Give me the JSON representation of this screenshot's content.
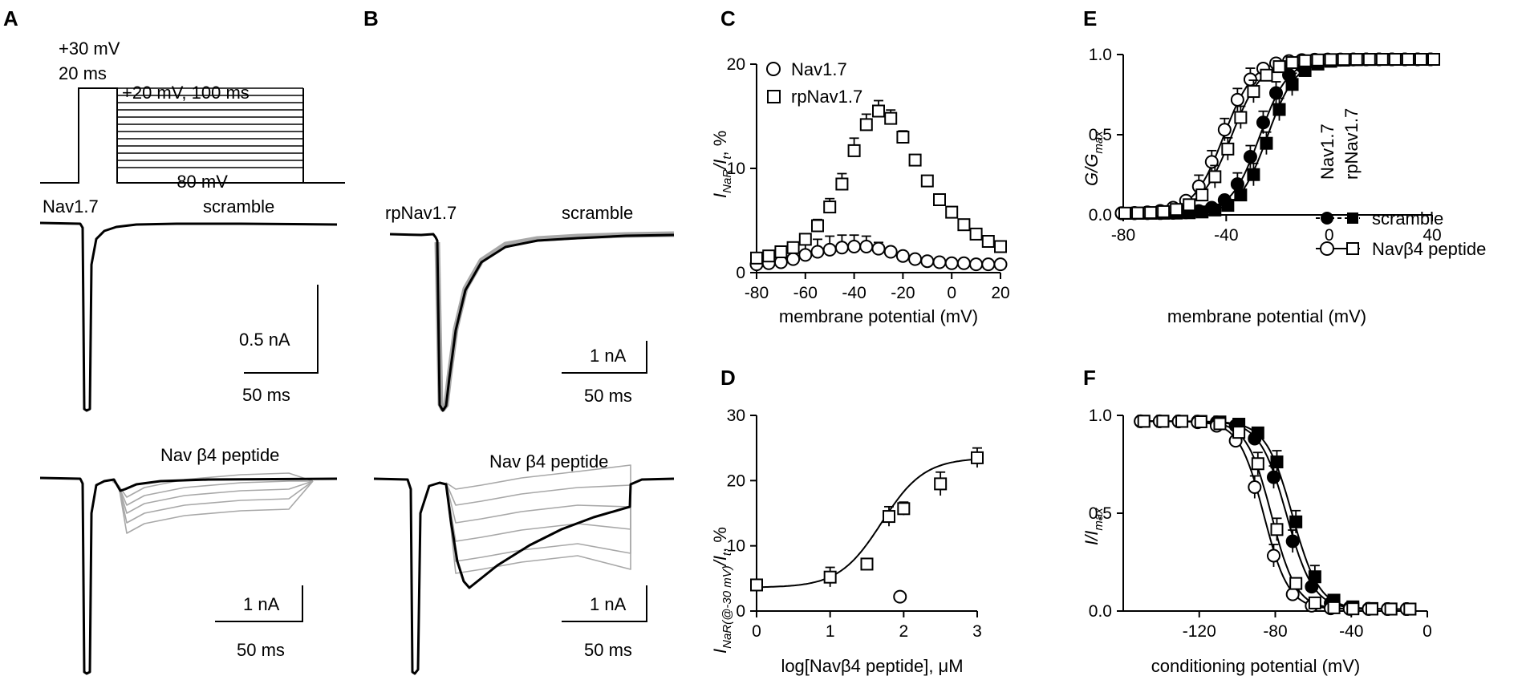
{
  "figure_panels": [
    "A",
    "B",
    "C",
    "D",
    "E",
    "F"
  ],
  "protocol": {
    "label_prepulse_voltage": "+30 mV",
    "label_prepulse_duration": "20 ms",
    "label_test": "+20 mV, 100 ms",
    "label_holding": "-80 mV"
  },
  "traces": {
    "a_top": {
      "left": "Nav1.7",
      "right": "scramble",
      "scale_current": "0.5 nA",
      "scale_time": "50 ms"
    },
    "a_bottom": {
      "right": "Nav β4 peptide",
      "scale_current": "1 nA",
      "scale_time": "50 ms"
    },
    "b_top": {
      "left": "rpNav1.7",
      "right": "scramble",
      "scale_current": "1 nA",
      "scale_time": "50 ms"
    },
    "b_bottom": {
      "right": "Nav β4 peptide",
      "scale_current": "1 nA",
      "scale_time": "50 ms"
    }
  },
  "chart_data": [
    {
      "id": "C",
      "type": "scatter",
      "xlabel": "membrane potential (mV)",
      "ylabel": "I_NaR/I_t, %",
      "xlim": [
        -80,
        20
      ],
      "ylim": [
        0,
        20
      ],
      "xticks": [
        "-80",
        "-60",
        "-40",
        "-20",
        "0",
        "20"
      ],
      "yticks": [
        "0",
        "10",
        "20"
      ],
      "series": [
        {
          "name": "Nav1.7",
          "marker": "open-circle",
          "x": [
            -80,
            -75,
            -70,
            -65,
            -60,
            -55,
            -50,
            -45,
            -40,
            -35,
            -30,
            -25,
            -20,
            -15,
            -10,
            -5,
            0,
            5,
            10,
            15,
            20
          ],
          "y": [
            0.8,
            0.9,
            1.0,
            1.3,
            1.7,
            2.0,
            2.2,
            2.4,
            2.5,
            2.5,
            2.3,
            2.0,
            1.6,
            1.3,
            1.1,
            1.0,
            0.9,
            0.9,
            0.8,
            0.8,
            0.8
          ],
          "err": [
            0,
            0,
            0.3,
            0.6,
            1.0,
            1.2,
            1.3,
            1.2,
            1.1,
            1.0,
            0.6,
            0.3,
            0,
            0,
            0,
            0,
            0,
            0,
            0,
            0,
            0
          ]
        },
        {
          "name": "rpNav1.7",
          "marker": "open-square",
          "x": [
            -80,
            -75,
            -70,
            -65,
            -60,
            -55,
            -50,
            -45,
            -40,
            -35,
            -30,
            -25,
            -20,
            -15,
            -10,
            -5,
            0,
            5,
            10,
            15,
            20
          ],
          "y": [
            1.4,
            1.6,
            2.0,
            2.4,
            3.2,
            4.5,
            6.3,
            8.5,
            11.7,
            14.2,
            15.5,
            14.8,
            13.0,
            10.8,
            8.8,
            7.0,
            5.8,
            4.6,
            3.7,
            3.0,
            2.5
          ],
          "err": [
            0,
            0,
            0,
            0.3,
            0.4,
            0.6,
            0.8,
            1.0,
            1.2,
            1.0,
            1.0,
            0.8,
            0.6,
            0,
            0,
            0,
            0,
            0,
            0,
            0,
            0
          ]
        }
      ]
    },
    {
      "id": "D",
      "type": "scatter",
      "xlabel": "log[Navβ4 peptide], μM",
      "ylabel": "I_NaR(@-30 mV)/I_t, %",
      "xlim": [
        0,
        3
      ],
      "ylim": [
        0,
        30
      ],
      "xticks": [
        "0",
        "1",
        "2",
        "3"
      ],
      "yticks": [
        "0",
        "10",
        "20",
        "30"
      ],
      "fit": {
        "bottom": 3.6,
        "top": 23.5,
        "log_ec50": 1.7,
        "hill": 1.5
      },
      "series": [
        {
          "name": "rpNav1.7",
          "marker": "open-square",
          "x": [
            0,
            1,
            1.5,
            1.8,
            2,
            2.5,
            3
          ],
          "y": [
            4.0,
            5.2,
            7.2,
            14.5,
            15.7,
            19.5,
            23.5
          ],
          "err": [
            0,
            1.5,
            0,
            1.5,
            1.0,
            1.8,
            1.5
          ]
        },
        {
          "name": "Nav1.7",
          "marker": "open-circle",
          "x": [
            1.95
          ],
          "y": [
            2.2
          ],
          "err": [
            0
          ]
        }
      ]
    },
    {
      "id": "E",
      "type": "scatter",
      "xlabel": "membrane potential (mV)",
      "ylabel": "G/G_max",
      "xlim": [
        -80,
        40
      ],
      "ylim": [
        0,
        1.0
      ],
      "xticks": [
        "-80",
        "-40",
        "0",
        "40"
      ],
      "yticks": [
        "0.0",
        "0.5",
        "1.0"
      ],
      "legend_labels": [
        "Nav1.7",
        "rpNav1.7",
        "scramble",
        "Navβ4 peptide"
      ],
      "series": [
        {
          "name": "Nav1.7 scramble",
          "marker": "filled-circle",
          "v_half": -27,
          "k": 5.5
        },
        {
          "name": "rpNav1.7 scramble",
          "marker": "filled-square",
          "v_half": -24,
          "k": 5.5
        },
        {
          "name": "Nav1.7 Navβ4 peptide",
          "marker": "open-circle",
          "v_half": -41,
          "k": 5.8
        },
        {
          "name": "rpNav1.7 Navβ4 peptide",
          "marker": "open-square",
          "v_half": -38,
          "k": 6.0
        }
      ]
    },
    {
      "id": "F",
      "type": "scatter",
      "xlabel": "conditioning potential (mV)",
      "ylabel": "I/I_max",
      "xlim": [
        -160,
        0
      ],
      "ylim": [
        0,
        1.0
      ],
      "xticks": [
        "-120",
        "-80",
        "-40",
        "0"
      ],
      "yticks": [
        "0.0",
        "0.5",
        "1.0"
      ],
      "series": [
        {
          "name": "Nav1.7 scramble",
          "marker": "filled-circle",
          "v_half": -74,
          "k": 7.0
        },
        {
          "name": "rpNav1.7 scramble",
          "marker": "filled-square",
          "v_half": -71,
          "k": 7.0
        },
        {
          "name": "Nav1.7 Navβ4 peptide",
          "marker": "open-circle",
          "v_half": -86,
          "k": 6.5
        },
        {
          "name": "rpNav1.7 Navβ4 peptide",
          "marker": "open-square",
          "v_half": -82,
          "k": 6.5
        }
      ]
    }
  ]
}
